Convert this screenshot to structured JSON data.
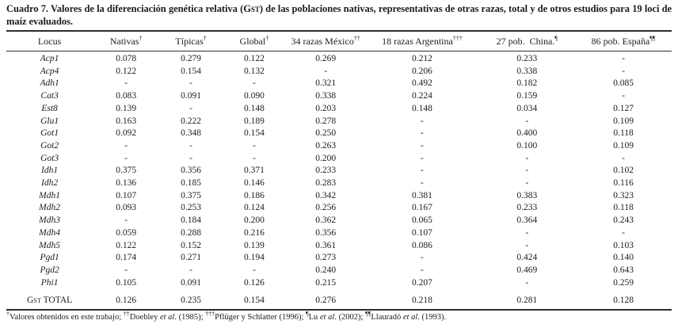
{
  "colors": {
    "background": "#ffffff",
    "text": "#1c1c1c",
    "rule": "#2e2e2e"
  },
  "title": {
    "segments": [
      {
        "text": "Cuadro 7. Valores de la diferenciación genética relativa (G"
      },
      {
        "smallcap": "ST"
      },
      {
        "text": ") de las poblaciones nativas, representativas de otras razas, total y de otros estudios para 19 loci de maíz evaluados."
      }
    ]
  },
  "table": {
    "columns": [
      {
        "label": "Locus",
        "sup": ""
      },
      {
        "label": "Nativas",
        "sup": "†"
      },
      {
        "label": "Típicas",
        "sup": "†"
      },
      {
        "label": "Global",
        "sup": "†"
      },
      {
        "label": "34 razas México",
        "sup": "††"
      },
      {
        "label": "18 razas Argentina",
        "sup": "†††"
      },
      {
        "label": "27 pob.  China.",
        "sup": "¶"
      },
      {
        "label": "86 pob. España",
        "sup": "¶¶"
      }
    ],
    "rows": [
      {
        "locus": "Acp1",
        "values": [
          "0.078",
          "0.279",
          "0.122",
          "0.269",
          "0.212",
          "0.233",
          "-"
        ]
      },
      {
        "locus": "Acp4",
        "values": [
          "0.122",
          "0.154",
          "0.132",
          "-",
          "0.206",
          "0.338",
          "-"
        ]
      },
      {
        "locus": "Adh1",
        "values": [
          "-",
          "-",
          "-",
          "0.321",
          "0.492",
          "0.182",
          "0.085"
        ]
      },
      {
        "locus": "Cat3",
        "values": [
          "0.083",
          "0.091",
          "0.090",
          "0.338",
          "0.224",
          "0.159",
          "-"
        ]
      },
      {
        "locus": "Est8",
        "values": [
          "0.139",
          "-",
          "0.148",
          "0.203",
          "0.148",
          "0.034",
          "0.127"
        ]
      },
      {
        "locus": "Glu1",
        "values": [
          "0.163",
          "0.222",
          "0.189",
          "0.278",
          "-",
          "-",
          "0.109"
        ]
      },
      {
        "locus": "Got1",
        "values": [
          "0.092",
          "0.348",
          "0.154",
          "0.250",
          "-",
          "0.400",
          "0.118"
        ]
      },
      {
        "locus": "Got2",
        "values": [
          "-",
          "-",
          "-",
          "0.263",
          "-",
          "0.100",
          "0.109"
        ]
      },
      {
        "locus": "Got3",
        "values": [
          "-",
          "-",
          "-",
          "0.200",
          "-",
          "-",
          "-"
        ]
      },
      {
        "locus": "Idh1",
        "values": [
          "0.375",
          "0.356",
          "0.371",
          "0.233",
          "-",
          "-",
          "0.102"
        ]
      },
      {
        "locus": "Idh2",
        "values": [
          "0.136",
          "0.185",
          "0.146",
          "0.283",
          "-",
          "-",
          "0.116"
        ]
      },
      {
        "locus": "Mdh1",
        "values": [
          "0.107",
          "0.375",
          "0.186",
          "0.342",
          "0.381",
          "0.383",
          "0.323"
        ]
      },
      {
        "locus": "Mdh2",
        "values": [
          "0.093",
          "0.253",
          "0.124",
          "0.256",
          "0.167",
          "0.233",
          "0.118"
        ]
      },
      {
        "locus": "Mdh3",
        "values": [
          "-",
          "0.184",
          "0.200",
          "0.362",
          "0.065",
          "0.364",
          "0.243"
        ]
      },
      {
        "locus": "Mdh4",
        "values": [
          "0.059",
          "0.288",
          "0.216",
          "0.356",
          "0.107",
          "-",
          "-"
        ]
      },
      {
        "locus": "Mdh5",
        "values": [
          "0.122",
          "0.152",
          "0.139",
          "0.361",
          "0.086",
          "-",
          "0.103"
        ]
      },
      {
        "locus": "Pgd1",
        "values": [
          "0.174",
          "0.271",
          "0.194",
          "0.273",
          "-",
          "0.424",
          "0.140"
        ]
      },
      {
        "locus": "Pgd2",
        "values": [
          "-",
          "-",
          "-",
          "0.240",
          "-",
          "0.469",
          "0.643"
        ]
      },
      {
        "locus": "Phi1",
        "values": [
          "0.105",
          "0.091",
          "0.126",
          "0.215",
          "0.207",
          "-",
          "0.259"
        ]
      }
    ],
    "total_row": {
      "label_segments": [
        {
          "text": "G"
        },
        {
          "smallcap": "ST"
        },
        {
          "text": " TOTAL"
        }
      ],
      "values": [
        "0.126",
        "0.235",
        "0.154",
        "0.276",
        "0.218",
        "0.281",
        "0.128"
      ]
    }
  },
  "footnote": {
    "segments": [
      {
        "sup": "†"
      },
      {
        "text": "Valores obtenidos en este trabajo; "
      },
      {
        "sup": "††"
      },
      {
        "text": "Doebley "
      },
      {
        "italic": "et al"
      },
      {
        "text": ". (1985); "
      },
      {
        "sup": "†††"
      },
      {
        "text": "Pflüger y Schlatter (1996); "
      },
      {
        "sup": "¶"
      },
      {
        "text": "Lu "
      },
      {
        "italic": "et al"
      },
      {
        "text": ". (2002); "
      },
      {
        "sup": "¶¶"
      },
      {
        "text": "Llauradó "
      },
      {
        "italic": "et al"
      },
      {
        "text": ". (1993)."
      }
    ]
  }
}
